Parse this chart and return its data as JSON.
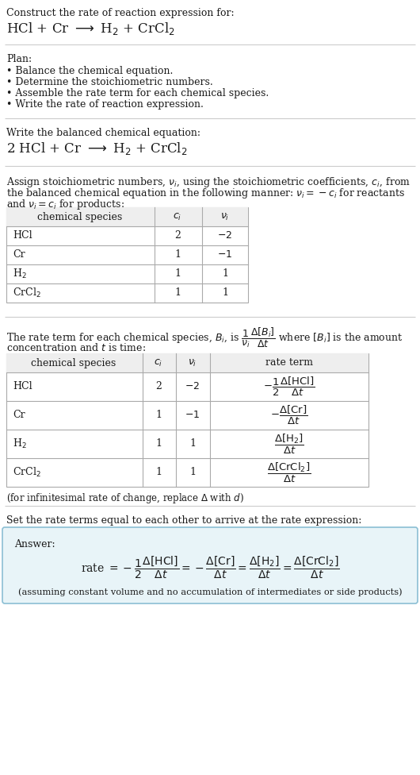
{
  "bg_color": "#ffffff",
  "title_line1": "Construct the rate of reaction expression for:",
  "plan_items": [
    "• Balance the chemical equation.",
    "• Determine the stoichiometric numbers.",
    "• Assemble the rate term for each chemical species.",
    "• Write the rate of reaction expression."
  ],
  "balanced_header": "Write the balanced chemical equation:",
  "assign_line1": "Assign stoichiometric numbers, $\\nu_i$, using the stoichiometric coefficients, $c_i$, from",
  "assign_line2": "the balanced chemical equation in the following manner: $\\nu_i = -c_i$ for reactants",
  "assign_line3": "and $\\nu_i = c_i$ for products:",
  "rate_line1": "The rate term for each chemical species, $B_i$, is $\\dfrac{1}{\\nu_i}\\dfrac{\\Delta[B_i]}{\\Delta t}$ where $[B_i]$ is the amount",
  "rate_line2": "concentration and $t$ is time:",
  "infinitesimal": "(for infinitesimal rate of change, replace $\\Delta$ with $d$)",
  "set_equal": "Set the rate terms equal to each other to arrive at the rate expression:",
  "answer_label": "Answer:",
  "answer_note": "(assuming constant volume and no accumulation of intermediates or side products)"
}
